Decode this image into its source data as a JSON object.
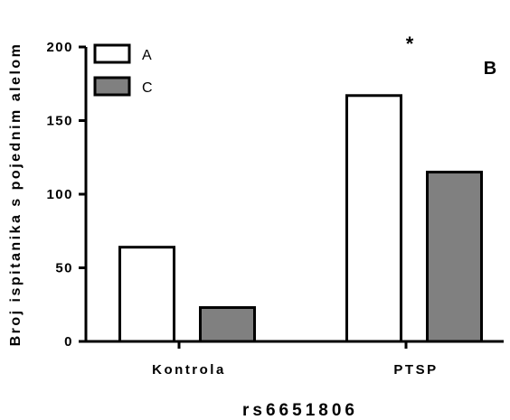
{
  "chart_data": {
    "type": "bar",
    "panel_label": "B",
    "categories": [
      "Kontrola",
      "PTSP"
    ],
    "series": [
      {
        "name": "A",
        "values": [
          64,
          167
        ],
        "color": "#ffffff"
      },
      {
        "name": "C",
        "values": [
          23,
          115
        ],
        "color": "#808080"
      }
    ],
    "xlabel": "rs6651806",
    "ylabel": "Broj ispitanika s pojednim alelom",
    "ylim": [
      0,
      200
    ],
    "yticks": [
      "0",
      "50",
      "100",
      "150",
      "200"
    ],
    "annotations": [
      {
        "text": "*",
        "category": "PTSP"
      }
    ],
    "legend_position": "top-left",
    "grid": false
  }
}
